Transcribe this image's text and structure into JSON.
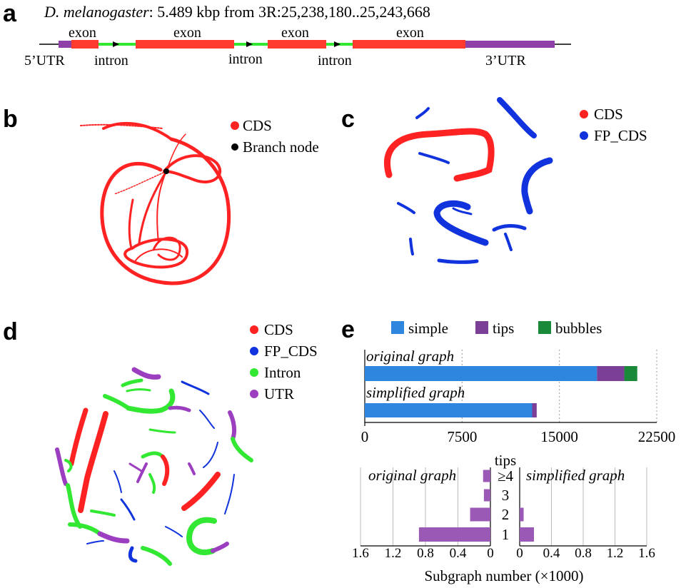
{
  "panel_letters": {
    "a": "a",
    "b": "b",
    "c": "c",
    "d": "d",
    "e": "e"
  },
  "panel_a": {
    "title_species": "D. melanogaster",
    "title_rest": ": 5.489 kbp from 3R:25,238,180..25,243,668",
    "exon_label": "exon",
    "intron_label": "intron",
    "utr5_label": "5’UTR",
    "utr3_label": "3’UTR",
    "colors": {
      "exon": "#ff3b30",
      "intron": "#33e833",
      "utr": "#8e3fa8"
    }
  },
  "panel_b": {
    "legend": [
      {
        "label": "CDS",
        "color": "#ff2222"
      },
      {
        "label": "Branch node",
        "color": "#000000"
      }
    ]
  },
  "panel_c": {
    "legend": [
      {
        "label": "CDS",
        "color": "#ff2222"
      },
      {
        "label": "FP_CDS",
        "color": "#1133dd"
      }
    ]
  },
  "panel_d": {
    "legend": [
      {
        "label": "CDS",
        "color": "#ff2222"
      },
      {
        "label": "FP_CDS",
        "color": "#1133dd"
      },
      {
        "label": "Intron",
        "color": "#33e833"
      },
      {
        "label": "UTR",
        "color": "#9b3fc0"
      }
    ]
  },
  "chart_data": [
    {
      "type": "bar",
      "orientation": "horizontal",
      "stacked": true,
      "categories": [
        "original graph",
        "simplified graph"
      ],
      "series": [
        {
          "name": "simple",
          "color": "#2e86de",
          "values": [
            17900,
            12900
          ]
        },
        {
          "name": "tips",
          "color": "#7b3f98",
          "values": [
            2100,
            350
          ]
        },
        {
          "name": "bubbles",
          "color": "#1a8a3a",
          "values": [
            1000,
            0
          ]
        }
      ],
      "xlim": [
        0,
        22500
      ],
      "xticks": [
        "0",
        "7500",
        "15000",
        "22500"
      ],
      "xtick_values": [
        0,
        7500,
        15000,
        22500
      ],
      "grid": "vertical-dotted",
      "legend_position": "top"
    },
    {
      "type": "bar",
      "orientation": "horizontal",
      "mirrored": true,
      "category_axis_title": "tips",
      "categories": [
        "≥4",
        "3",
        "2",
        "1"
      ],
      "left_title": "original graph",
      "right_title": "simplified graph",
      "left_values": [
        0.09,
        0.08,
        0.25,
        0.88
      ],
      "right_values": [
        0,
        0,
        0.05,
        0.18
      ],
      "left_axis_ticks": [
        "1.6",
        "1.2",
        "0.8",
        "0.4",
        "0"
      ],
      "right_axis_ticks": [
        "0",
        "0.4",
        "0.8",
        "1.2",
        "1.6"
      ],
      "xlim": [
        0,
        1.6
      ],
      "xlabel": "Subgraph number (×1000)",
      "bar_color": "#9b59b6"
    }
  ]
}
